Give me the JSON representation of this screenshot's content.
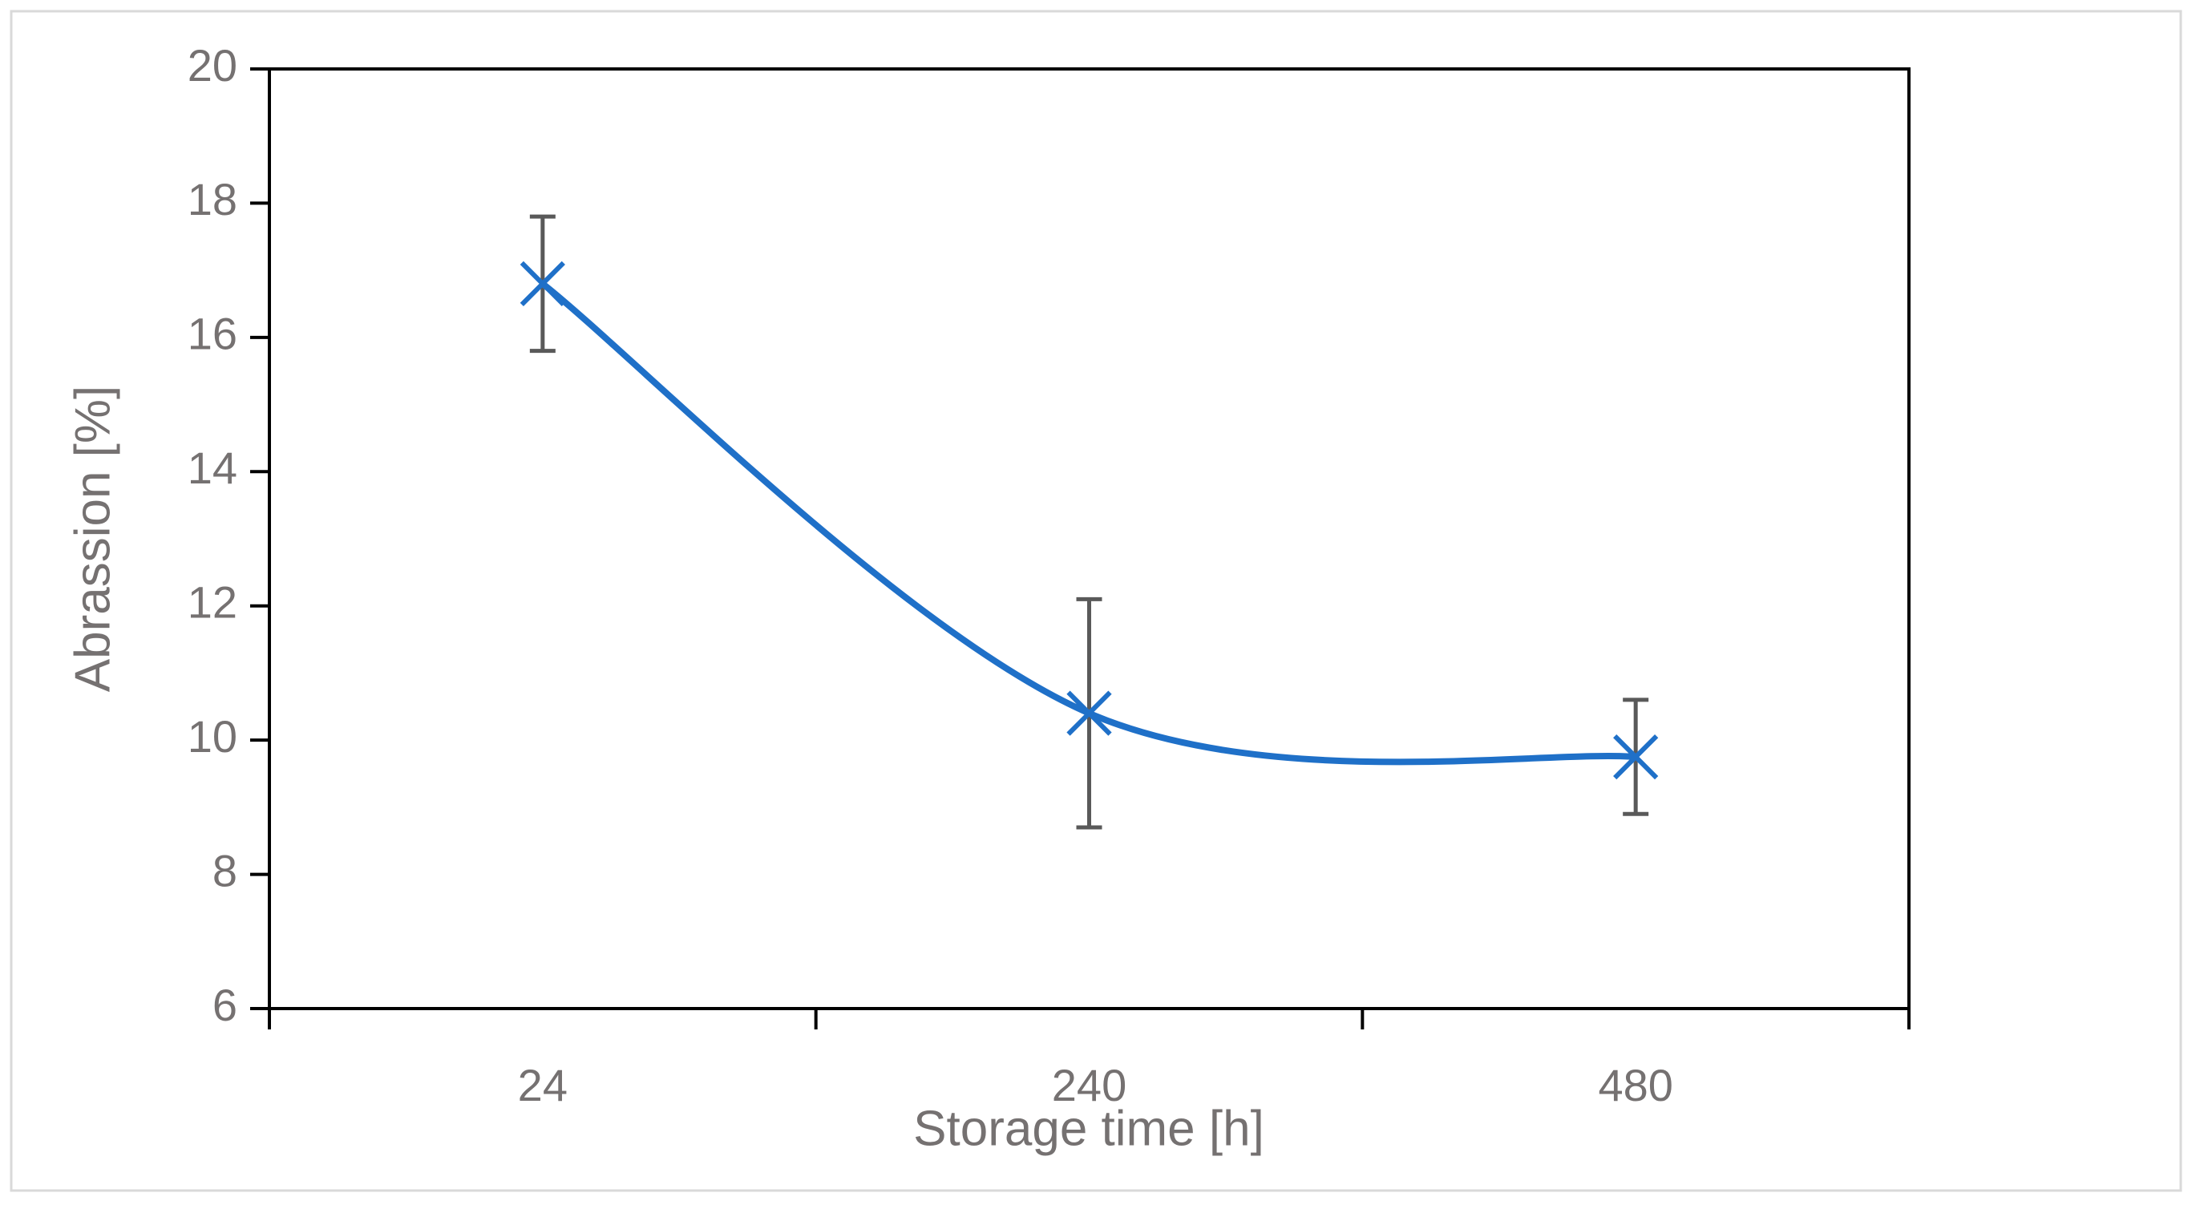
{
  "chart_data": {
    "type": "line",
    "xlabel": "Storage time [h]",
    "ylabel": "Abrassion [%]",
    "categories": [
      "24",
      "240",
      "480"
    ],
    "series": [
      {
        "color": "#1f70c8",
        "values": [
          16.8,
          10.4,
          9.75
        ],
        "errors": [
          1.0,
          1.7,
          0.85
        ]
      }
    ],
    "ylim": [
      6,
      20
    ],
    "yticks": [
      6,
      8,
      10,
      12,
      14,
      16,
      18,
      20
    ],
    "smooth": true,
    "errorbar_color": "#595959"
  }
}
